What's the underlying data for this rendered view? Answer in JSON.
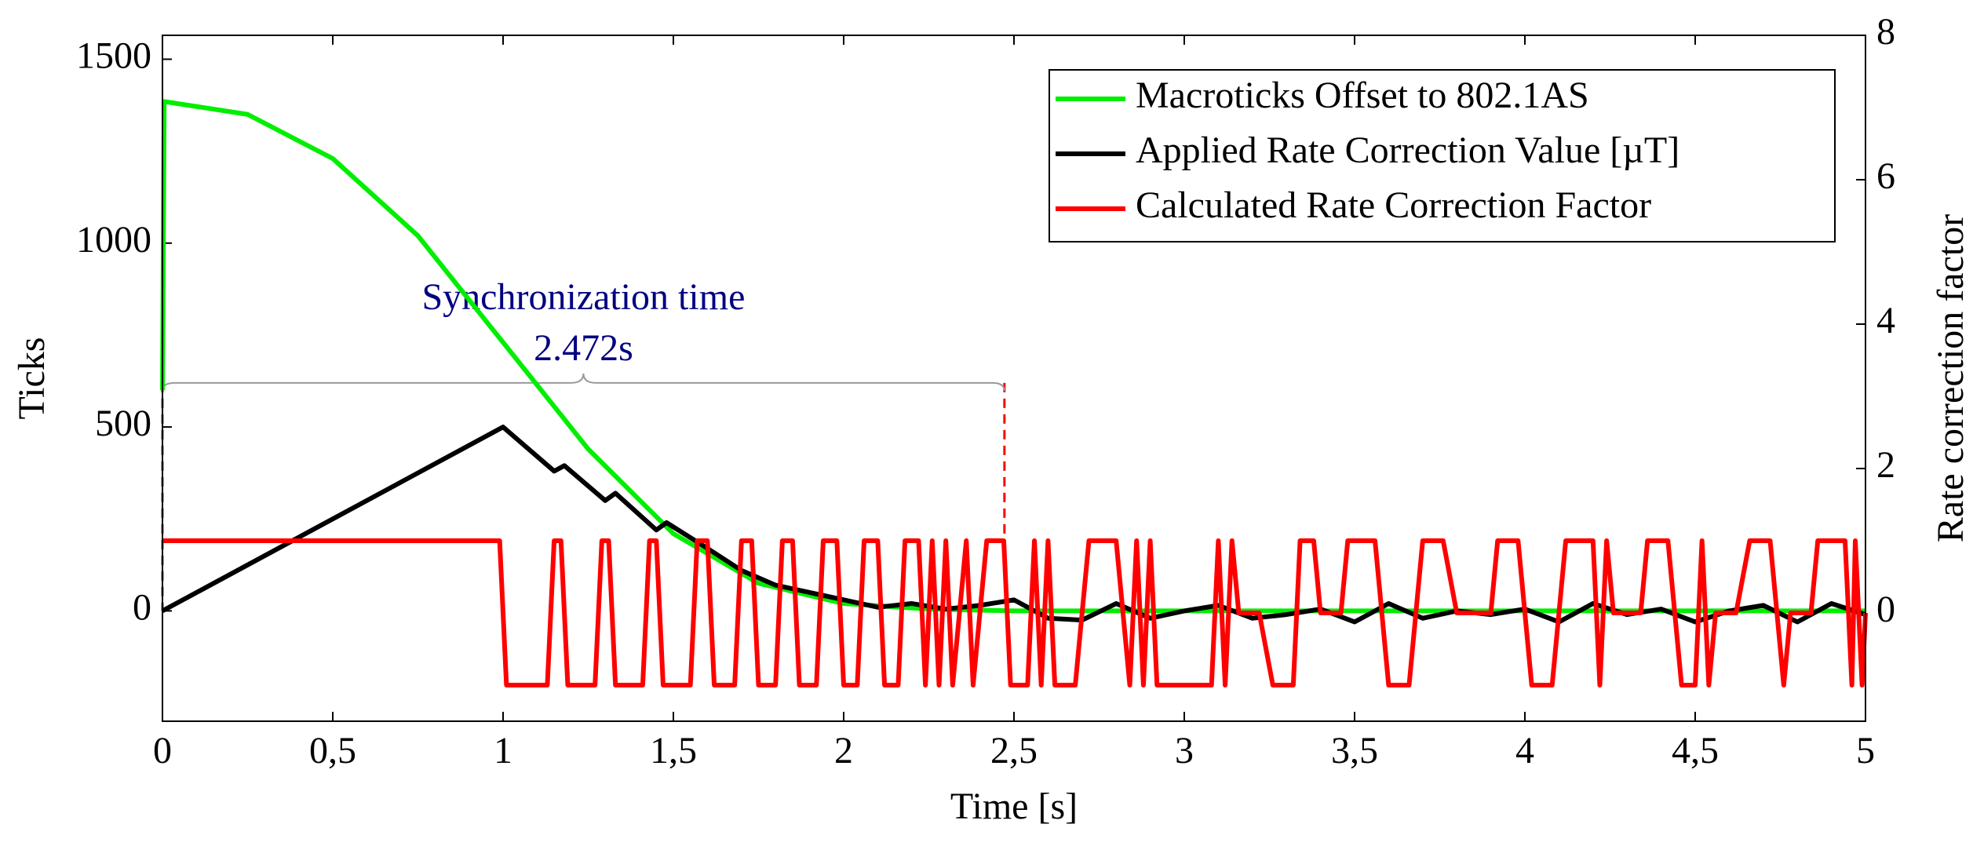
{
  "chart_data": {
    "type": "line",
    "xlabel": "Time [s]",
    "ylabel": "Ticks",
    "y2label": "Rate correction factor",
    "xlim": [
      0,
      5
    ],
    "ylim": [
      -300,
      1565
    ],
    "y2lim": [
      -1.5,
      8
    ],
    "xticks": [
      0,
      {
        "value": 0.5,
        "label": "0,5"
      },
      1,
      {
        "value": 1.5,
        "label": "1,5"
      },
      2,
      {
        "value": 2.5,
        "label": "2,5"
      },
      3,
      {
        "value": 3.5,
        "label": "3,5"
      },
      4,
      {
        "value": 4.5,
        "label": "4,5"
      },
      5
    ],
    "yticks": [
      0,
      500,
      1000,
      1500
    ],
    "y2ticks": [
      0,
      2,
      4,
      6,
      8
    ],
    "legend": "top-right",
    "series": [
      {
        "name": "Macroticks Offset to 802.1AS",
        "color": "#00ee00",
        "x": [
          0,
          0.005,
          0.25,
          0.5,
          0.75,
          1.0,
          1.25,
          1.5,
          1.75,
          2.0,
          2.25,
          2.5,
          3.0,
          3.5,
          4.0,
          4.5,
          5.0
        ],
        "values": [
          600,
          1385,
          1350,
          1230,
          1020,
          730,
          440,
          210,
          75,
          20,
          5,
          0,
          0,
          0,
          0,
          0,
          0
        ]
      },
      {
        "name": "Applied Rate Correction Value [µT]",
        "color": "#000000",
        "x": [
          0,
          1.0,
          1.15,
          1.18,
          1.3,
          1.33,
          1.45,
          1.48,
          1.6,
          1.7,
          1.8,
          1.9,
          2.0,
          2.1,
          2.2,
          2.3,
          2.4,
          2.5,
          2.6,
          2.7,
          2.8,
          2.9,
          3.0,
          3.1,
          3.2,
          3.3,
          3.4,
          3.5,
          3.6,
          3.7,
          3.8,
          3.9,
          4.0,
          4.1,
          4.2,
          4.3,
          4.4,
          4.5,
          4.6,
          4.7,
          4.8,
          4.9,
          5.0
        ],
        "values": [
          0,
          500,
          380,
          395,
          300,
          320,
          220,
          240,
          170,
          110,
          70,
          50,
          30,
          10,
          20,
          5,
          15,
          30,
          -20,
          -25,
          20,
          -20,
          0,
          15,
          -20,
          -10,
          5,
          -30,
          20,
          -20,
          0,
          -10,
          5,
          -30,
          20,
          -10,
          5,
          -30,
          0,
          15,
          -30,
          20,
          -10
        ]
      },
      {
        "name": "Calculated Rate Correction Factor",
        "color": "#ff0000",
        "axis": "y2",
        "x": [
          0,
          0.99,
          1.01,
          1.13,
          1.15,
          1.17,
          1.19,
          1.27,
          1.29,
          1.31,
          1.33,
          1.41,
          1.43,
          1.45,
          1.47,
          1.55,
          1.57,
          1.6,
          1.62,
          1.68,
          1.7,
          1.73,
          1.75,
          1.8,
          1.82,
          1.85,
          1.87,
          1.92,
          1.94,
          1.98,
          2.0,
          2.04,
          2.06,
          2.1,
          2.12,
          2.16,
          2.18,
          2.22,
          2.24,
          2.26,
          2.28,
          2.3,
          2.32,
          2.36,
          2.38,
          2.42,
          2.47,
          2.49,
          2.54,
          2.56,
          2.58,
          2.6,
          2.62,
          2.68,
          2.72,
          2.8,
          2.84,
          2.86,
          2.88,
          2.9,
          2.92,
          3.08,
          3.1,
          3.12,
          3.14,
          3.16,
          3.22,
          3.26,
          3.32,
          3.34,
          3.38,
          3.4,
          3.46,
          3.48,
          3.56,
          3.6,
          3.66,
          3.7,
          3.76,
          3.8,
          3.9,
          3.92,
          3.98,
          4.02,
          4.08,
          4.12,
          4.2,
          4.22,
          4.24,
          4.26,
          4.34,
          4.36,
          4.42,
          4.46,
          4.5,
          4.52,
          4.54,
          4.56,
          4.62,
          4.66,
          4.72,
          4.76,
          4.78,
          4.84,
          4.86,
          4.94,
          4.96,
          4.97,
          4.99,
          5.0
        ],
        "values": [
          1,
          1,
          -1,
          -1,
          1,
          1,
          -1,
          -1,
          1,
          1,
          -1,
          -1,
          1,
          1,
          -1,
          -1,
          1,
          1,
          -1,
          -1,
          1,
          1,
          -1,
          -1,
          1,
          1,
          -1,
          -1,
          1,
          1,
          -1,
          -1,
          1,
          1,
          -1,
          -1,
          1,
          1,
          -1,
          1,
          -1,
          1,
          -1,
          1,
          -1,
          1,
          1,
          -1,
          -1,
          1,
          -1,
          1,
          -1,
          -1,
          1,
          1,
          -1,
          1,
          -1,
          1,
          -1,
          -1,
          1,
          -1,
          1,
          0,
          0,
          -1,
          -1,
          1,
          1,
          0,
          0,
          1,
          1,
          -1,
          -1,
          1,
          1,
          0,
          0,
          1,
          1,
          -1,
          -1,
          1,
          1,
          -1,
          1,
          0,
          0,
          1,
          1,
          -1,
          -1,
          1,
          -1,
          0,
          0,
          1,
          1,
          -1,
          0,
          0,
          1,
          1,
          -1,
          1,
          -1,
          0
        ]
      }
    ],
    "annotation": {
      "lines": [
        "Synchronization time",
        "2.472s"
      ],
      "x_start": 0,
      "x_end": 2.472,
      "y": 620
    }
  }
}
